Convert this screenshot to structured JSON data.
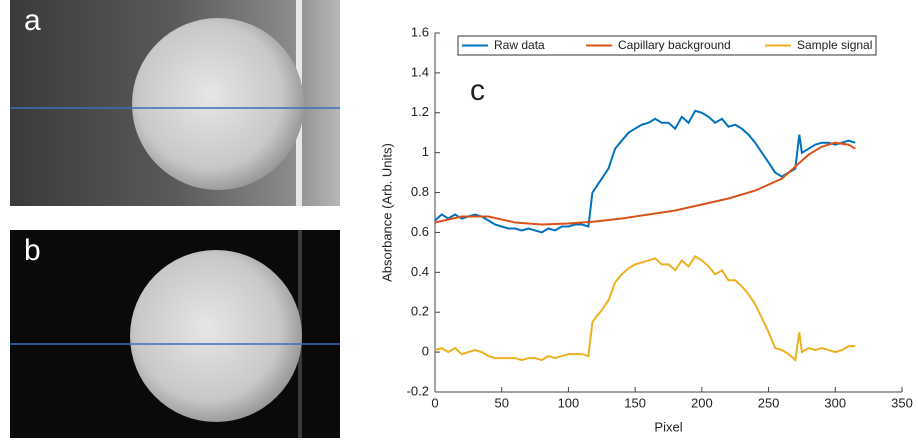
{
  "panels": {
    "a": "a",
    "b": "b"
  },
  "chart_data": {
    "type": "line",
    "annotation": "c",
    "xlabel": "Pixel",
    "ylabel": "Absorbance (Arb. Units)",
    "xlim": [
      0,
      350
    ],
    "xticks": [
      0,
      50,
      100,
      150,
      200,
      250,
      300,
      350
    ],
    "ylim": [
      -0.2,
      1.6
    ],
    "yticks": [
      -0.2,
      0,
      0.2,
      0.4,
      0.6,
      0.8,
      1,
      1.2,
      1.4,
      1.6
    ],
    "legend": "top",
    "series": [
      {
        "name": "Raw data",
        "color": "#0072bd",
        "x": [
          0,
          5,
          10,
          15,
          20,
          25,
          30,
          35,
          40,
          45,
          50,
          55,
          60,
          65,
          70,
          75,
          80,
          85,
          90,
          95,
          100,
          105,
          110,
          115,
          118,
          120,
          125,
          130,
          135,
          140,
          145,
          150,
          155,
          160,
          165,
          170,
          175,
          180,
          185,
          190,
          195,
          200,
          205,
          210,
          215,
          220,
          225,
          230,
          235,
          240,
          245,
          250,
          255,
          260,
          265,
          270,
          273,
          275,
          280,
          285,
          290,
          295,
          300,
          305,
          310,
          315
        ],
        "values": [
          0.66,
          0.69,
          0.67,
          0.69,
          0.67,
          0.68,
          0.69,
          0.68,
          0.66,
          0.64,
          0.63,
          0.62,
          0.62,
          0.61,
          0.62,
          0.61,
          0.6,
          0.62,
          0.61,
          0.63,
          0.63,
          0.64,
          0.64,
          0.63,
          0.8,
          0.82,
          0.87,
          0.92,
          1.02,
          1.06,
          1.1,
          1.12,
          1.14,
          1.15,
          1.17,
          1.15,
          1.15,
          1.12,
          1.18,
          1.15,
          1.21,
          1.2,
          1.18,
          1.15,
          1.17,
          1.13,
          1.14,
          1.12,
          1.09,
          1.05,
          1.0,
          0.95,
          0.9,
          0.88,
          0.9,
          0.92,
          1.09,
          1.0,
          1.02,
          1.04,
          1.05,
          1.05,
          1.04,
          1.05,
          1.06,
          1.05
        ]
      },
      {
        "name": "Capillary background",
        "color": "#d95319",
        "x": [
          0,
          20,
          40,
          60,
          80,
          100,
          120,
          140,
          160,
          180,
          200,
          220,
          240,
          260,
          270,
          280,
          290,
          300,
          310,
          315
        ],
        "values": [
          0.65,
          0.68,
          0.68,
          0.65,
          0.64,
          0.645,
          0.655,
          0.67,
          0.69,
          0.71,
          0.74,
          0.77,
          0.81,
          0.87,
          0.93,
          0.99,
          1.03,
          1.05,
          1.04,
          1.02
        ]
      },
      {
        "name": "Sample signal",
        "color": "#edb120",
        "x": [
          0,
          5,
          10,
          15,
          20,
          25,
          30,
          35,
          40,
          45,
          50,
          55,
          60,
          65,
          70,
          75,
          80,
          85,
          90,
          95,
          100,
          105,
          110,
          115,
          118,
          120,
          125,
          130,
          135,
          140,
          145,
          150,
          155,
          160,
          165,
          170,
          175,
          180,
          185,
          190,
          195,
          200,
          205,
          210,
          215,
          220,
          225,
          230,
          235,
          240,
          245,
          250,
          255,
          260,
          265,
          270,
          273,
          275,
          280,
          285,
          290,
          295,
          300,
          305,
          310,
          315
        ],
        "values": [
          0.01,
          0.02,
          0.0,
          0.02,
          -0.01,
          0.0,
          0.01,
          0.0,
          -0.02,
          -0.03,
          -0.03,
          -0.03,
          -0.03,
          -0.04,
          -0.03,
          -0.03,
          -0.04,
          -0.02,
          -0.03,
          -0.02,
          -0.01,
          -0.01,
          -0.01,
          -0.02,
          0.15,
          0.17,
          0.21,
          0.26,
          0.35,
          0.39,
          0.42,
          0.44,
          0.45,
          0.46,
          0.47,
          0.44,
          0.44,
          0.41,
          0.46,
          0.43,
          0.48,
          0.46,
          0.43,
          0.39,
          0.41,
          0.36,
          0.36,
          0.33,
          0.29,
          0.24,
          0.17,
          0.1,
          0.02,
          0.01,
          -0.01,
          -0.04,
          0.1,
          0.0,
          0.02,
          0.01,
          0.02,
          0.01,
          0.0,
          0.01,
          0.03,
          0.03
        ]
      }
    ]
  }
}
